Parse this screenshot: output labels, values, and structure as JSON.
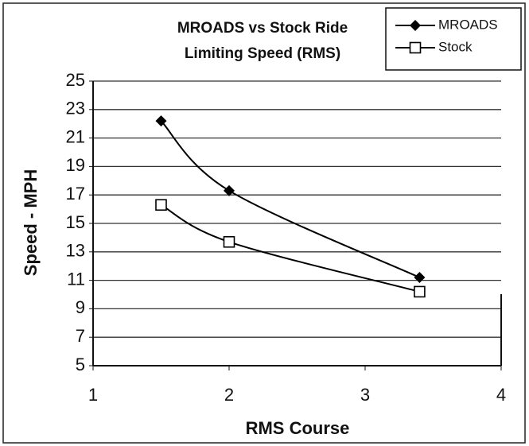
{
  "chart_data": {
    "type": "line",
    "title": [
      "MROADS vs Stock Ride",
      "Limiting Speed (RMS)"
    ],
    "x_label": "RMS Course",
    "y_label": "Speed - MPH",
    "series": [
      {
        "name": "MROADS",
        "color": "#000000",
        "marker": "diamond",
        "x": [
          1.5,
          2.0,
          3.4
        ],
        "values": [
          22.2,
          17.3,
          11.2
        ]
      },
      {
        "name": "Stock",
        "color": "#000000",
        "marker": "square",
        "x": [
          1.5,
          2.0,
          3.4
        ],
        "values": [
          16.3,
          13.7,
          10.2
        ]
      }
    ],
    "xlim": [
      1,
      4
    ],
    "xticks": [
      1,
      2,
      3,
      4
    ],
    "ylim": [
      5,
      25
    ],
    "yticks": [
      5,
      7,
      9,
      11,
      13,
      15,
      17,
      19,
      21,
      23,
      25
    ],
    "grid": true,
    "legend": "top-right"
  }
}
